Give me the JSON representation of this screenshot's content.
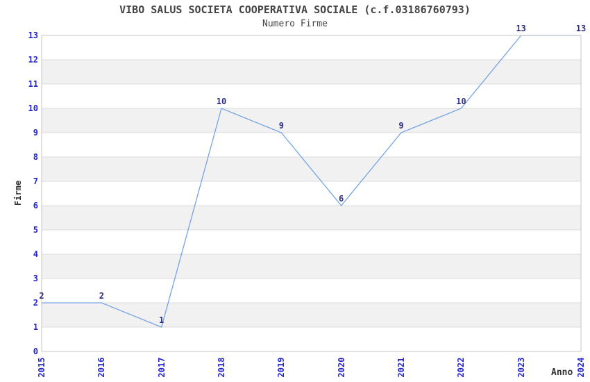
{
  "chart_data": {
    "type": "line",
    "title": "VIBO SALUS SOCIETA COOPERATIVA SOCIALE (c.f.03186760793)",
    "subtitle": "Numero Firme",
    "xlabel": "Anno",
    "ylabel": "Firme",
    "categories": [
      "2015",
      "2016",
      "2017",
      "2018",
      "2019",
      "2020",
      "2021",
      "2022",
      "2023",
      "2024"
    ],
    "series": [
      {
        "name": "Numero Firme",
        "values": [
          2,
          2,
          1,
          10,
          9,
          6,
          9,
          10,
          13,
          13
        ]
      }
    ],
    "point_labels": [
      "2",
      "2",
      "1",
      "10",
      "9",
      "6",
      "9",
      "10",
      "13",
      "13"
    ],
    "ylim": [
      0,
      13
    ],
    "y_ticks": [
      0,
      1,
      2,
      3,
      4,
      5,
      6,
      7,
      8,
      9,
      10,
      11,
      12,
      13
    ],
    "grid": "horizontal",
    "legend_position": "none",
    "colors": {
      "line": "#74a3e3",
      "tick_label": "#2424cc",
      "point_label": "#2e2e80",
      "band_fill": "#f1f1f1",
      "grid_line": "#dcdcdc",
      "spine": "#c4c4c4",
      "title_text": "#444444",
      "axis_title_text": "#333333",
      "background": "#ffffff"
    }
  }
}
